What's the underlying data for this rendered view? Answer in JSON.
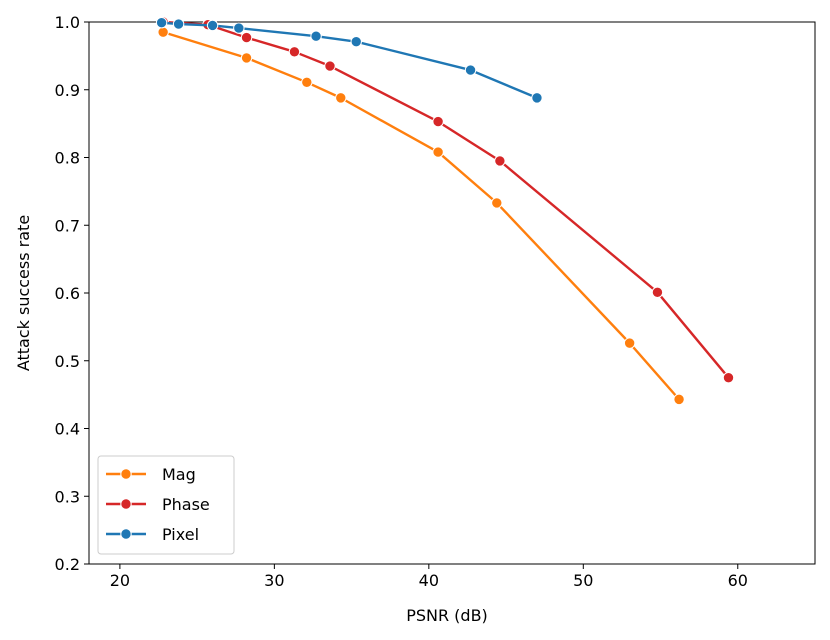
{
  "chart_data": {
    "type": "line",
    "xlabel": "PSNR (dB)",
    "ylabel": "Attack success rate",
    "xlim": [
      18,
      65
    ],
    "ylim": [
      0.2,
      1.0
    ],
    "xticks": [
      20,
      30,
      40,
      50,
      60
    ],
    "yticks": [
      0.2,
      0.3,
      0.4,
      0.5,
      0.6,
      0.7,
      0.8,
      0.9,
      1.0
    ],
    "legend_position": "lower-left",
    "grid": false,
    "series": [
      {
        "name": "Mag",
        "color": "#ff7f0e",
        "x": [
          22.8,
          28.2,
          32.1,
          34.3,
          40.6,
          44.4,
          53.0,
          56.2
        ],
        "y": [
          0.985,
          0.947,
          0.911,
          0.888,
          0.808,
          0.733,
          0.526,
          0.443
        ]
      },
      {
        "name": "Phase",
        "color": "#d62728",
        "x": [
          22.8,
          25.7,
          28.2,
          31.3,
          33.6,
          40.6,
          44.6,
          54.8,
          59.4
        ],
        "y": [
          1.0,
          0.996,
          0.977,
          0.956,
          0.935,
          0.853,
          0.795,
          0.601,
          0.475
        ]
      },
      {
        "name": "Pixel",
        "color": "#1f77b4",
        "x": [
          22.7,
          23.8,
          26.0,
          27.7,
          32.7,
          35.3,
          42.7,
          47.0
        ],
        "y": [
          0.999,
          0.997,
          0.995,
          0.991,
          0.979,
          0.971,
          0.929,
          0.888
        ]
      }
    ]
  }
}
